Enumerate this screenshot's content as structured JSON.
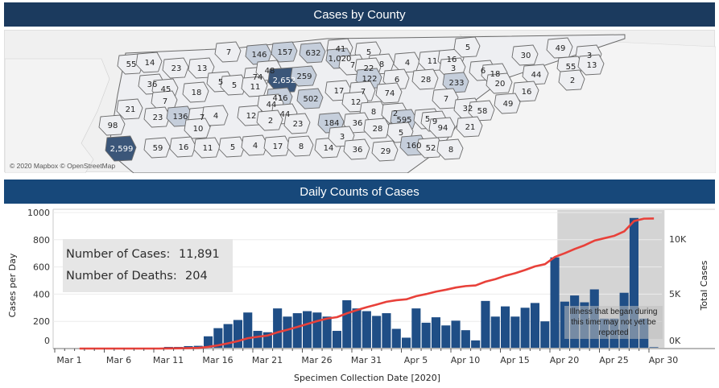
{
  "map_section": {
    "title": "Cases by County",
    "attribution": "© 2020 Mapbox © OpenStreetMap",
    "colors": {
      "low": "#eeeff2",
      "mid": "#c5cedb",
      "high": "#3b5679",
      "border": "#6b6b6b"
    },
    "counties": [
      {
        "label": "55",
        "v": 55
      },
      {
        "label": "14",
        "v": 14
      },
      {
        "label": "23",
        "v": 23
      },
      {
        "label": "13",
        "v": 13
      },
      {
        "label": "7",
        "v": 7
      },
      {
        "label": "146",
        "v": 146
      },
      {
        "label": "157",
        "v": 157
      },
      {
        "label": "632",
        "v": 632
      },
      {
        "label": "41",
        "v": 41
      },
      {
        "label": "1,020",
        "v": 1020
      },
      {
        "label": "5",
        "v": 5
      },
      {
        "label": "8",
        "v": 8
      },
      {
        "label": "4",
        "v": 4
      },
      {
        "label": "11",
        "v": 11
      },
      {
        "label": "16",
        "v": 16
      },
      {
        "label": "5",
        "v": 5
      },
      {
        "label": "30",
        "v": 30
      },
      {
        "label": "49",
        "v": 49
      },
      {
        "label": "3",
        "v": 3
      },
      {
        "label": "36",
        "v": 36
      },
      {
        "label": "45",
        "v": 45
      },
      {
        "label": "18",
        "v": 18
      },
      {
        "label": "5",
        "v": 5
      },
      {
        "label": "5",
        "v": 5
      },
      {
        "label": "74",
        "v": 74
      },
      {
        "label": "48",
        "v": 48
      },
      {
        "label": "2,652",
        "v": 2652
      },
      {
        "label": "259",
        "v": 259
      },
      {
        "label": "7",
        "v": 7
      },
      {
        "label": "22",
        "v": 22
      },
      {
        "label": "122",
        "v": 122
      },
      {
        "label": "6",
        "v": 6
      },
      {
        "label": "28",
        "v": 28
      },
      {
        "label": "3",
        "v": 3
      },
      {
        "label": "233",
        "v": 233
      },
      {
        "label": "6",
        "v": 6
      },
      {
        "label": "18",
        "v": 18
      },
      {
        "label": "20",
        "v": 20
      },
      {
        "label": "44",
        "v": 44
      },
      {
        "label": "55",
        "v": 55
      },
      {
        "label": "13",
        "v": 13
      },
      {
        "label": "2",
        "v": 2
      },
      {
        "label": "16",
        "v": 16
      },
      {
        "label": "21",
        "v": 21
      },
      {
        "label": "7",
        "v": 7
      },
      {
        "label": "11",
        "v": 11
      },
      {
        "label": "416",
        "v": 416
      },
      {
        "label": "502",
        "v": 502
      },
      {
        "label": "17",
        "v": 17
      },
      {
        "label": "7",
        "v": 7
      },
      {
        "label": "74",
        "v": 74
      },
      {
        "label": "7",
        "v": 7
      },
      {
        "label": "32",
        "v": 32
      },
      {
        "label": "58",
        "v": 58
      },
      {
        "label": "49",
        "v": 49
      },
      {
        "label": "98",
        "v": 98
      },
      {
        "label": "23",
        "v": 23
      },
      {
        "label": "136",
        "v": 136
      },
      {
        "label": "7",
        "v": 7
      },
      {
        "label": "4",
        "v": 4
      },
      {
        "label": "12",
        "v": 12
      },
      {
        "label": "44",
        "v": 44
      },
      {
        "label": "44",
        "v": 44
      },
      {
        "label": "12",
        "v": 12
      },
      {
        "label": "8",
        "v": 8
      },
      {
        "label": "2",
        "v": 2
      },
      {
        "label": "595",
        "v": 595
      },
      {
        "label": "5",
        "v": 5
      },
      {
        "label": "9",
        "v": 9
      },
      {
        "label": "94",
        "v": 94
      },
      {
        "label": "21",
        "v": 21
      },
      {
        "label": "10",
        "v": 10
      },
      {
        "label": "2",
        "v": 2
      },
      {
        "label": "23",
        "v": 23
      },
      {
        "label": "184",
        "v": 184
      },
      {
        "label": "36",
        "v": 36
      },
      {
        "label": "28",
        "v": 28
      },
      {
        "label": "5",
        "v": 5
      },
      {
        "label": "2,599",
        "v": 2599
      },
      {
        "label": "59",
        "v": 59
      },
      {
        "label": "16",
        "v": 16
      },
      {
        "label": "11",
        "v": 11
      },
      {
        "label": "5",
        "v": 5
      },
      {
        "label": "4",
        "v": 4
      },
      {
        "label": "17",
        "v": 17
      },
      {
        "label": "8",
        "v": 8
      },
      {
        "label": "14",
        "v": 14
      },
      {
        "label": "3",
        "v": 3
      },
      {
        "label": "36",
        "v": 36
      },
      {
        "label": "29",
        "v": 29
      },
      {
        "label": "160",
        "v": 160
      },
      {
        "label": "52",
        "v": 52
      },
      {
        "label": "8",
        "v": 8
      }
    ]
  },
  "daily_section": {
    "title": "Daily Counts of Cases",
    "stats": {
      "cases_label": "Number of Cases:",
      "cases_value": "11,891",
      "deaths_label": "Number of Deaths:",
      "deaths_value": "204"
    },
    "note": "Illness that began during this time may not yet be reported"
  },
  "chart_data": {
    "type": "bar",
    "combo": "bar + line (dual axis)",
    "title": "Daily Counts of Cases",
    "xlabel": "Specimen Collection Date [2020]",
    "ylabel": "Cases per Day",
    "y2label": "Total Cases",
    "ylim": [
      0,
      1000
    ],
    "y2lim": [
      0,
      12000
    ],
    "yticks": [
      "0",
      "200",
      "400",
      "600",
      "800",
      "1000"
    ],
    "y2ticks": [
      "0K",
      "5K",
      "10K"
    ],
    "xticks": [
      "Mar 1",
      "Mar 6",
      "Mar 11",
      "Mar 16",
      "Mar 21",
      "Mar 26",
      "Mar 31",
      "Apr 5",
      "Apr 10",
      "Apr 15",
      "Apr 20",
      "Apr 25",
      "Apr 30"
    ],
    "grid": true,
    "start_date": "Mar 1",
    "x": [
      "Mar 1",
      "Mar 2",
      "Mar 3",
      "Mar 4",
      "Mar 5",
      "Mar 6",
      "Mar 7",
      "Mar 8",
      "Mar 9",
      "Mar 10",
      "Mar 11",
      "Mar 12",
      "Mar 13",
      "Mar 14",
      "Mar 15",
      "Mar 16",
      "Mar 17",
      "Mar 18",
      "Mar 19",
      "Mar 20",
      "Mar 21",
      "Mar 22",
      "Mar 23",
      "Mar 24",
      "Mar 25",
      "Mar 26",
      "Mar 27",
      "Mar 28",
      "Mar 29",
      "Mar 30",
      "Mar 31",
      "Apr 1",
      "Apr 2",
      "Apr 3",
      "Apr 4",
      "Apr 5",
      "Apr 6",
      "Apr 7",
      "Apr 8",
      "Apr 9",
      "Apr 10",
      "Apr 11",
      "Apr 12",
      "Apr 13",
      "Apr 14",
      "Apr 15",
      "Apr 16",
      "Apr 17",
      "Apr 18",
      "Apr 19",
      "Apr 20",
      "Apr 21",
      "Apr 22",
      "Apr 23",
      "Apr 24",
      "Apr 25",
      "Apr 26",
      "Apr 27",
      "Apr 28",
      "Apr 29",
      "Apr 30"
    ],
    "series": [
      {
        "name": "Cases per Day",
        "type": "bar",
        "color": "#1f4e86",
        "values": [
          0,
          0,
          0,
          0,
          0,
          0,
          0,
          0,
          0,
          0,
          0,
          12,
          12,
          18,
          20,
          90,
          150,
          180,
          210,
          265,
          130,
          120,
          295,
          235,
          260,
          275,
          265,
          235,
          130,
          355,
          295,
          275,
          240,
          260,
          145,
          80,
          295,
          190,
          230,
          170,
          205,
          135,
          60,
          350,
          235,
          310,
          235,
          300,
          335,
          200,
          670,
          345,
          390,
          340,
          435,
          220,
          220,
          410,
          960,
          220,
          10
        ]
      },
      {
        "name": "Total Cases",
        "type": "line",
        "axis": "right",
        "color": "#e8413a",
        "final_value": 11891
      }
    ],
    "shaded_region": {
      "from": "Apr 21",
      "to": "Apr 30",
      "label": "Illness that began during this time may not yet be reported",
      "color": "#d4d4d4"
    }
  }
}
